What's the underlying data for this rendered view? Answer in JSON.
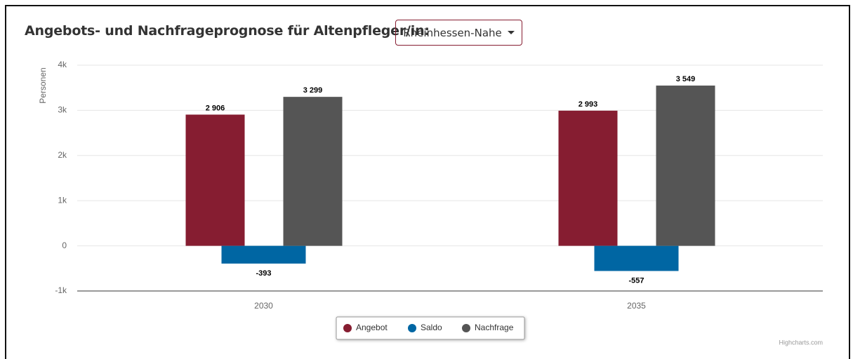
{
  "header": {
    "title": "Angebots- und Nachfrageprognose für Altenpfleger/in:",
    "region": "Rheinhessen-Nahe"
  },
  "chart_data": {
    "type": "bar",
    "y_label": "Personen",
    "categories": [
      "2030",
      "2035"
    ],
    "series": [
      {
        "name": "Angebot",
        "color": "#861d31",
        "values": [
          2906,
          2993
        ],
        "value_labels": [
          "2 906",
          "2 993"
        ]
      },
      {
        "name": "Saldo",
        "color": "#0066a3",
        "values": [
          -393,
          -557
        ]
      },
      {
        "name": "Nachfrage",
        "color": "#555555",
        "values": [
          3299,
          3549
        ],
        "value_labels": [
          "3 299",
          "3 549"
        ]
      }
    ],
    "ylim": [
      -1000,
      4000
    ],
    "yticks": [
      {
        "value": -1000,
        "label": "-1k"
      },
      0,
      {
        "value": 1000,
        "label": "1k"
      },
      {
        "value": 2000,
        "label": "2k"
      },
      {
        "value": 3000,
        "label": "3k"
      },
      {
        "value": 4000,
        "label": "4k"
      }
    ],
    "grid": true,
    "legend": "bottom"
  },
  "credits": "Highcharts.com"
}
